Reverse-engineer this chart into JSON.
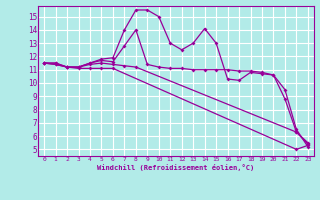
{
  "background_color": "#b2ebe8",
  "grid_color": "#ffffff",
  "line_color": "#990099",
  "xlabel": "Windchill (Refroidissement éolien,°C)",
  "xlim": [
    -0.5,
    23.5
  ],
  "ylim": [
    4.5,
    15.8
  ],
  "yticks": [
    5,
    6,
    7,
    8,
    9,
    10,
    11,
    12,
    13,
    14,
    15
  ],
  "xticks": [
    0,
    1,
    2,
    3,
    4,
    5,
    6,
    7,
    8,
    9,
    10,
    11,
    12,
    13,
    14,
    15,
    16,
    17,
    18,
    19,
    20,
    21,
    22,
    23
  ],
  "lines": [
    {
      "x": [
        0,
        1,
        2,
        3,
        4,
        5,
        6,
        7,
        8,
        9,
        10,
        11,
        12,
        13,
        14,
        15,
        16,
        17,
        18,
        19,
        20,
        21,
        22,
        23
      ],
      "y": [
        11.5,
        11.5,
        11.2,
        11.2,
        11.5,
        11.8,
        11.9,
        14.0,
        15.5,
        15.5,
        15.0,
        13.0,
        12.5,
        13.0,
        14.1,
        13.0,
        10.3,
        10.2,
        10.8,
        10.7,
        10.6,
        8.8,
        6.3,
        5.5
      ]
    },
    {
      "x": [
        0,
        1,
        2,
        3,
        4,
        5,
        6,
        7,
        8,
        9,
        10,
        11,
        12,
        13,
        14,
        15,
        16,
        17,
        18,
        19,
        20,
        21,
        22,
        23
      ],
      "y": [
        11.5,
        11.5,
        11.2,
        11.2,
        11.5,
        11.7,
        11.6,
        12.8,
        14.0,
        11.4,
        11.2,
        11.1,
        11.1,
        11.0,
        11.0,
        11.0,
        11.0,
        10.9,
        10.9,
        10.8,
        10.6,
        9.5,
        6.5,
        5.2
      ]
    },
    {
      "x": [
        0,
        1,
        2,
        3,
        4,
        5,
        6,
        22,
        23
      ],
      "y": [
        11.5,
        11.4,
        11.2,
        11.1,
        11.1,
        11.1,
        11.1,
        5.0,
        5.3
      ]
    },
    {
      "x": [
        0,
        1,
        2,
        3,
        4,
        5,
        6,
        7,
        8,
        22,
        23
      ],
      "y": [
        11.5,
        11.4,
        11.2,
        11.2,
        11.4,
        11.5,
        11.4,
        11.3,
        11.2,
        6.3,
        5.4
      ]
    }
  ]
}
